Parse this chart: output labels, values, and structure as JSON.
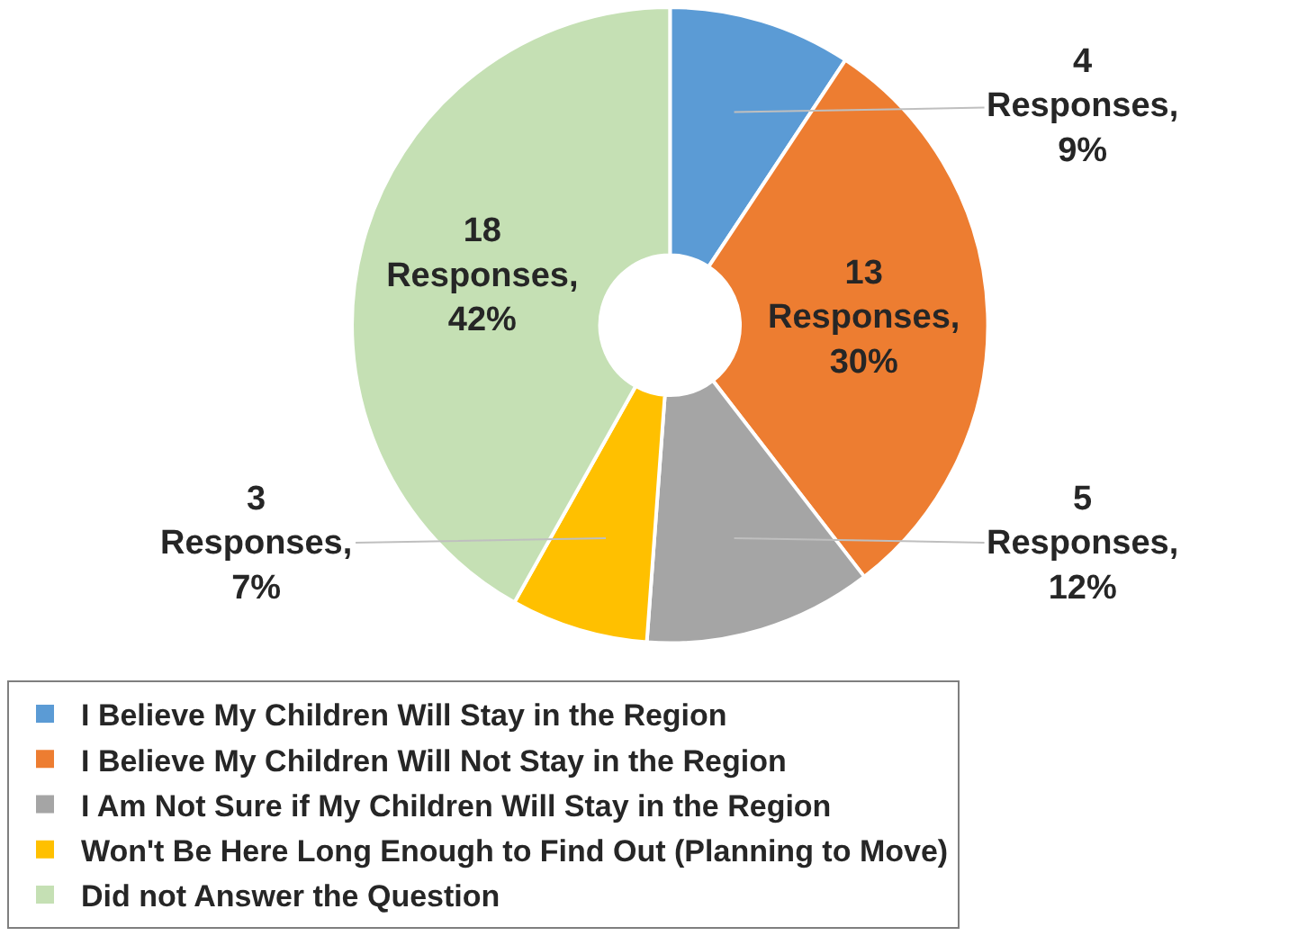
{
  "chart_data": {
    "type": "donut",
    "categories": [
      "I Believe My Children Will Stay in the Region",
      "I Believe My Children Will Not Stay in the Region",
      "I Am Not Sure if My Children Will Stay in the Region",
      "Won't Be Here Long Enough to Find Out (Planning to Move)",
      "Did not Answer the Question"
    ],
    "values": [
      4,
      13,
      5,
      3,
      18
    ],
    "colors": [
      "#5b9bd5",
      "#ed7d31",
      "#a5a5a5",
      "#ffc000",
      "#c5e0b4"
    ],
    "value_labels": [
      "4\nResponses,\n9%",
      "13\nResponses,\n30%",
      "5\nResponses,\n12%",
      "3\nResponses,\n7%",
      "18\nResponses,\n42%"
    ],
    "legend": "bottom"
  }
}
